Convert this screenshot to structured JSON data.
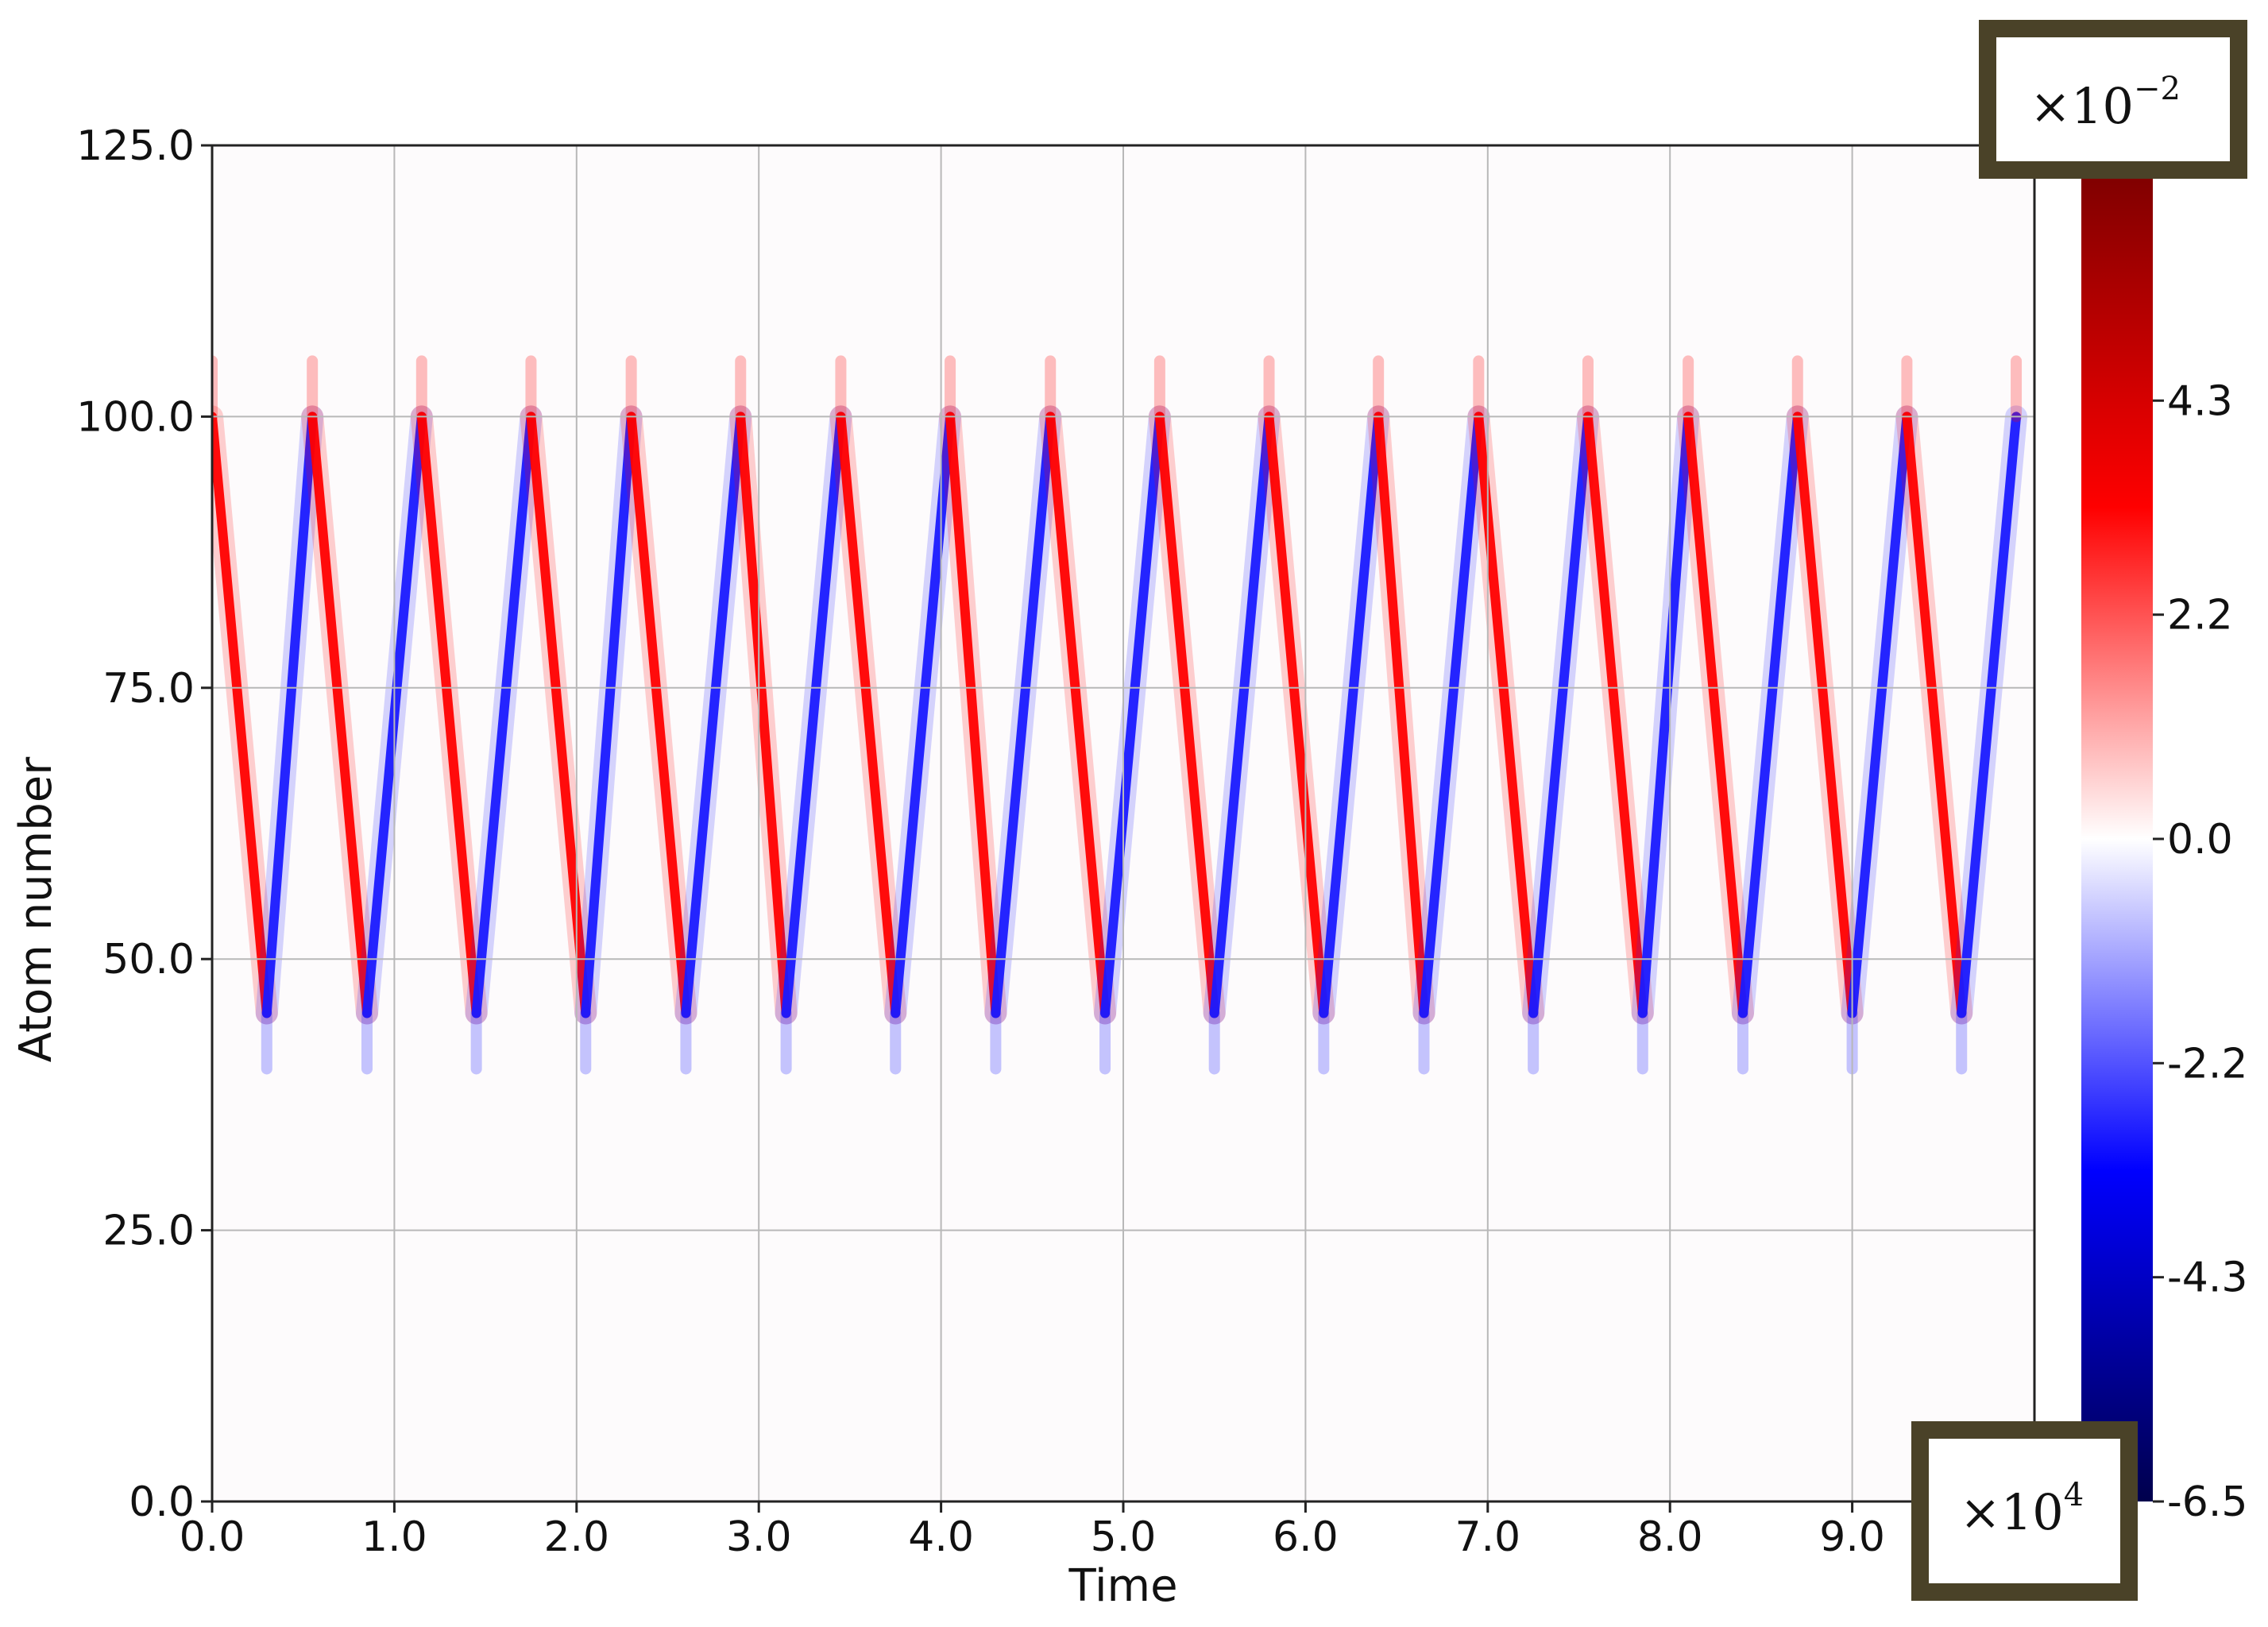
{
  "chart_data": {
    "type": "heatmap",
    "title": "",
    "xlabel": "Time",
    "ylabel": "Atom number",
    "xlim": [
      0.0,
      10.0
    ],
    "ylim": [
      0.0,
      125.0
    ],
    "x_ticks": [
      "0.0",
      "1.0",
      "2.0",
      "3.0",
      "4.0",
      "5.0",
      "6.0",
      "7.0",
      "8.0",
      "9.0"
    ],
    "x_tick_values": [
      0,
      1,
      2,
      3,
      4,
      5,
      6,
      7,
      8,
      9
    ],
    "y_ticks": [
      "0.0",
      "25.0",
      "50.0",
      "75.0",
      "100.0",
      "125.0"
    ],
    "y_tick_values": [
      0,
      25,
      50,
      75,
      100,
      125
    ],
    "x_multiplier": {
      "base": "×10",
      "exp": "4"
    },
    "grid": true,
    "colormap": "seismic",
    "colormap_colors": [
      "#00004c",
      "#0000ff",
      "#ffffff",
      "#ff0000",
      "#800000"
    ],
    "colorbar": {
      "min": -6.5,
      "max": 6.5,
      "tick_values": [
        4.3,
        2.2,
        0.0,
        -2.2,
        -4.3,
        -6.5
      ],
      "tick_labels": [
        "4.3",
        "2.2",
        "0.0",
        "-2.2",
        "-4.3",
        "-6.5"
      ],
      "multiplier": {
        "base": "×10",
        "exp": "−2"
      }
    },
    "pattern": {
      "description_values": {
        "turning_points_time": [
          0.0,
          0.3,
          0.55,
          0.85,
          1.15,
          1.45,
          1.75,
          2.05,
          2.3,
          2.6,
          2.9,
          3.15,
          3.45,
          3.75,
          4.05,
          4.3,
          4.6,
          4.9,
          5.2,
          5.5,
          5.8,
          6.1,
          6.4,
          6.65,
          6.95,
          7.25,
          7.55,
          7.85,
          8.1,
          8.4,
          8.7,
          9.0,
          9.3,
          9.6,
          9.9
        ],
        "turning_points_atom": [
          100,
          45,
          100,
          45,
          100,
          45,
          100,
          45,
          100,
          45,
          100,
          45,
          100,
          45,
          100,
          45,
          100,
          45,
          100,
          45,
          100,
          45,
          100,
          45,
          100,
          45,
          100,
          45,
          100,
          45,
          100,
          45,
          100,
          45,
          100
        ],
        "amplitude": 0.06
      }
    }
  }
}
